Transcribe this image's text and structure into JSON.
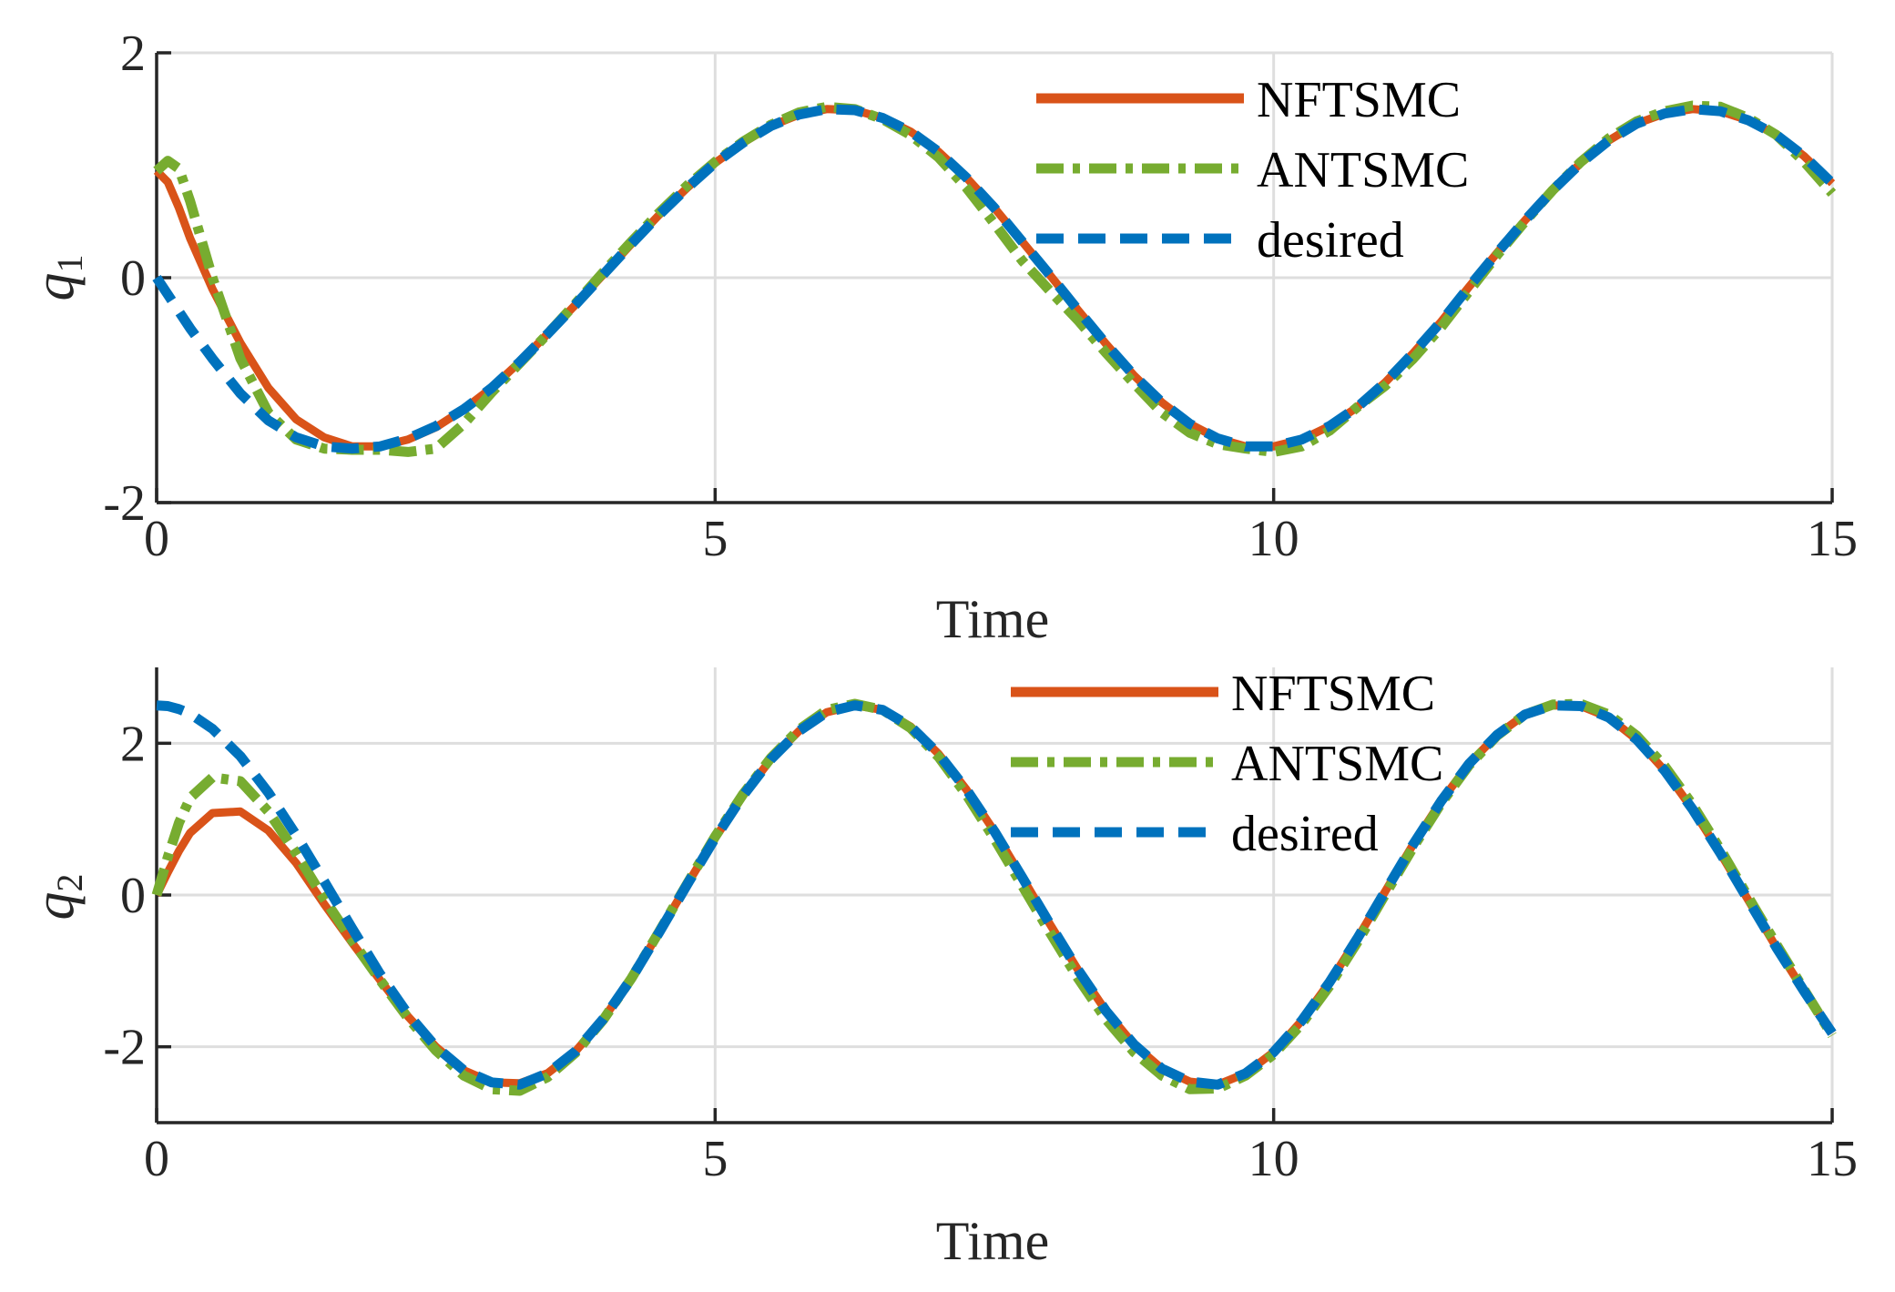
{
  "colors": {
    "nftsmc": "#D95319",
    "antsmc": "#77AC30",
    "desired": "#0072BD"
  },
  "legend": {
    "nftsmc": "NFTSMC",
    "antsmc": "ANTSMC",
    "desired": "desired"
  },
  "chart_data": [
    {
      "type": "line",
      "ylabel_main": "q",
      "ylabel_sub": "1",
      "xlabel": "Time",
      "xlim": [
        0,
        15
      ],
      "ylim": [
        -2,
        2
      ],
      "xticks": [
        0,
        5,
        10,
        15
      ],
      "xtick_labels": [
        "0",
        "5",
        "10",
        "15"
      ],
      "yticks": [
        -2,
        0,
        2
      ],
      "ytick_labels": [
        "-2",
        "0",
        "2"
      ],
      "grid": true,
      "legend_position": "top-right",
      "x": [
        0,
        0.1,
        0.2,
        0.3,
        0.5,
        0.75,
        1.0,
        1.25,
        1.5,
        1.75,
        2.0,
        2.25,
        2.5,
        2.75,
        3.0,
        3.25,
        3.5,
        3.75,
        4.0,
        4.25,
        4.5,
        4.75,
        5.0,
        5.25,
        5.5,
        5.75,
        6.0,
        6.25,
        6.5,
        6.75,
        7.0,
        7.25,
        7.5,
        7.75,
        8.0,
        8.25,
        8.5,
        8.75,
        9.0,
        9.25,
        9.5,
        9.75,
        10.0,
        10.25,
        10.5,
        10.75,
        11.0,
        11.25,
        11.5,
        11.75,
        12.0,
        12.25,
        12.5,
        12.75,
        13.0,
        13.25,
        13.5,
        13.75,
        14.0,
        14.25,
        14.5,
        14.75,
        15.0
      ],
      "series": [
        {
          "key": "desired",
          "name": "desired",
          "values": [
            0.0,
            -0.15,
            -0.3,
            -0.45,
            -0.72,
            -1.03,
            -1.27,
            -1.42,
            -1.5,
            -1.52,
            -1.5,
            -1.43,
            -1.32,
            -1.17,
            -0.98,
            -0.75,
            -0.5,
            -0.24,
            0.03,
            0.3,
            0.56,
            0.8,
            1.02,
            1.2,
            1.35,
            1.45,
            1.5,
            1.49,
            1.42,
            1.3,
            1.12,
            0.89,
            0.62,
            0.32,
            0.02,
            -0.29,
            -0.59,
            -0.87,
            -1.11,
            -1.3,
            -1.43,
            -1.5,
            -1.5,
            -1.44,
            -1.32,
            -1.15,
            -0.93,
            -0.67,
            -0.39,
            -0.08,
            0.22,
            0.51,
            0.78,
            1.02,
            1.22,
            1.37,
            1.46,
            1.5,
            1.48,
            1.4,
            1.27,
            1.08,
            0.84
          ]
        },
        {
          "key": "nftsmc",
          "name": "NFTSMC",
          "values": [
            0.95,
            0.85,
            0.62,
            0.35,
            -0.1,
            -0.58,
            -0.98,
            -1.26,
            -1.42,
            -1.5,
            -1.5,
            -1.44,
            -1.33,
            -1.17,
            -0.98,
            -0.75,
            -0.5,
            -0.24,
            0.03,
            0.3,
            0.56,
            0.8,
            1.02,
            1.2,
            1.35,
            1.45,
            1.5,
            1.49,
            1.42,
            1.3,
            1.12,
            0.89,
            0.62,
            0.32,
            0.02,
            -0.29,
            -0.59,
            -0.87,
            -1.11,
            -1.3,
            -1.43,
            -1.5,
            -1.5,
            -1.44,
            -1.32,
            -1.15,
            -0.93,
            -0.67,
            -0.39,
            -0.08,
            0.22,
            0.51,
            0.78,
            1.02,
            1.22,
            1.37,
            1.46,
            1.5,
            1.48,
            1.4,
            1.27,
            1.08,
            0.84
          ]
        },
        {
          "key": "antsmc",
          "name": "ANTSMC",
          "values": [
            0.95,
            1.04,
            0.97,
            0.68,
            0.0,
            -0.72,
            -1.2,
            -1.44,
            -1.52,
            -1.53,
            -1.53,
            -1.55,
            -1.52,
            -1.3,
            -1.02,
            -0.76,
            -0.5,
            -0.23,
            0.05,
            0.32,
            0.58,
            0.82,
            1.03,
            1.21,
            1.36,
            1.47,
            1.52,
            1.5,
            1.41,
            1.27,
            1.07,
            0.8,
            0.48,
            0.15,
            -0.12,
            -0.38,
            -0.67,
            -0.94,
            -1.2,
            -1.38,
            -1.48,
            -1.52,
            -1.55,
            -1.5,
            -1.36,
            -1.15,
            -0.96,
            -0.72,
            -0.44,
            -0.12,
            0.2,
            0.5,
            0.78,
            1.03,
            1.24,
            1.39,
            1.48,
            1.53,
            1.52,
            1.42,
            1.27,
            1.03,
            0.75
          ]
        }
      ]
    },
    {
      "type": "line",
      "ylabel_main": "q",
      "ylabel_sub": "2",
      "xlabel": "Time",
      "xlim": [
        0,
        15
      ],
      "ylim": [
        -3,
        3
      ],
      "xticks": [
        0,
        5,
        10,
        15
      ],
      "xtick_labels": [
        "0",
        "5",
        "10",
        "15"
      ],
      "yticks": [
        -2,
        0,
        2
      ],
      "ytick_labels": [
        "-2",
        "0",
        "2"
      ],
      "grid": true,
      "legend_position": "top-right",
      "x": [
        0,
        0.1,
        0.2,
        0.3,
        0.5,
        0.75,
        1.0,
        1.25,
        1.5,
        1.75,
        2.0,
        2.25,
        2.5,
        2.75,
        3.0,
        3.25,
        3.5,
        3.75,
        4.0,
        4.25,
        4.5,
        4.75,
        5.0,
        5.25,
        5.5,
        5.75,
        6.0,
        6.25,
        6.5,
        6.75,
        7.0,
        7.25,
        7.5,
        7.75,
        8.0,
        8.25,
        8.5,
        8.75,
        9.0,
        9.25,
        9.5,
        9.75,
        10.0,
        10.25,
        10.5,
        10.75,
        11.0,
        11.25,
        11.5,
        11.75,
        12.0,
        12.25,
        12.5,
        12.75,
        13.0,
        13.25,
        13.5,
        13.75,
        14.0,
        14.25,
        14.5,
        14.75,
        15.0
      ],
      "series": [
        {
          "key": "desired",
          "name": "desired",
          "values": [
            2.5,
            2.49,
            2.45,
            2.39,
            2.19,
            1.83,
            1.35,
            0.79,
            0.18,
            -0.44,
            -1.04,
            -1.57,
            -2.0,
            -2.31,
            -2.47,
            -2.5,
            -2.35,
            -2.06,
            -1.63,
            -1.1,
            -0.49,
            0.14,
            0.75,
            1.31,
            1.79,
            2.16,
            2.41,
            2.5,
            2.44,
            2.22,
            1.86,
            1.39,
            0.84,
            0.23,
            -0.39,
            -0.99,
            -1.53,
            -1.97,
            -2.29,
            -2.46,
            -2.5,
            -2.35,
            -2.07,
            -1.66,
            -1.15,
            -0.57,
            0.05,
            0.67,
            1.24,
            1.73,
            2.11,
            2.38,
            2.5,
            2.49,
            2.34,
            2.05,
            1.64,
            1.13,
            0.55,
            -0.07,
            -0.69,
            -1.27,
            -1.82
          ]
        },
        {
          "key": "nftsmc",
          "name": "NFTSMC",
          "values": [
            0.0,
            0.3,
            0.58,
            0.82,
            1.08,
            1.1,
            0.85,
            0.42,
            -0.12,
            -0.63,
            -1.12,
            -1.6,
            -2.0,
            -2.31,
            -2.47,
            -2.48,
            -2.35,
            -2.06,
            -1.63,
            -1.1,
            -0.49,
            0.14,
            0.75,
            1.31,
            1.79,
            2.16,
            2.41,
            2.5,
            2.44,
            2.22,
            1.86,
            1.39,
            0.84,
            0.23,
            -0.39,
            -0.99,
            -1.53,
            -1.97,
            -2.29,
            -2.46,
            -2.5,
            -2.35,
            -2.07,
            -1.66,
            -1.15,
            -0.57,
            0.05,
            0.67,
            1.24,
            1.73,
            2.11,
            2.38,
            2.5,
            2.49,
            2.34,
            2.05,
            1.64,
            1.13,
            0.55,
            -0.07,
            -0.69,
            -1.27,
            -1.82
          ]
        },
        {
          "key": "antsmc",
          "name": "ANTSMC",
          "values": [
            0.0,
            0.5,
            0.95,
            1.28,
            1.55,
            1.5,
            1.1,
            0.55,
            -0.05,
            -0.6,
            -1.12,
            -1.62,
            -2.05,
            -2.38,
            -2.56,
            -2.58,
            -2.4,
            -2.08,
            -1.64,
            -1.1,
            -0.48,
            0.15,
            0.77,
            1.33,
            1.81,
            2.18,
            2.44,
            2.52,
            2.44,
            2.2,
            1.82,
            1.32,
            0.74,
            0.12,
            -0.5,
            -1.1,
            -1.64,
            -2.07,
            -2.38,
            -2.56,
            -2.55,
            -2.38,
            -2.1,
            -1.7,
            -1.2,
            -0.62,
            0.01,
            0.63,
            1.21,
            1.71,
            2.1,
            2.38,
            2.51,
            2.52,
            2.38,
            2.1,
            1.7,
            1.19,
            0.6,
            -0.03,
            -0.65,
            -1.25,
            -1.85
          ]
        }
      ]
    }
  ]
}
